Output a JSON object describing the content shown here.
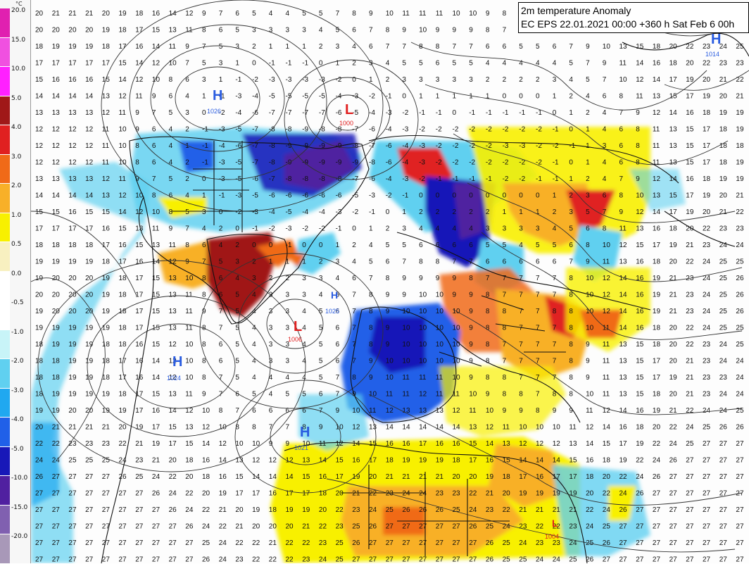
{
  "title": {
    "line1": "2m temperature Anomaly",
    "line2": "EC EPS 22.01.2021 00:00 +360 h Sat Feb 6 00h"
  },
  "legend": {
    "unit": "°C",
    "entries": [
      {
        "label": "20.0",
        "color": "#e020b0"
      },
      {
        "label": "15.0",
        "color": "#f050e0"
      },
      {
        "label": "10.0",
        "color": "#ff20ff"
      },
      {
        "label": "5.0",
        "color": "#a01818"
      },
      {
        "label": "4.0",
        "color": "#e02020"
      },
      {
        "label": "3.0",
        "color": "#f06a18"
      },
      {
        "label": "2.0",
        "color": "#f8b028"
      },
      {
        "label": "1.0",
        "color": "#f8f000"
      },
      {
        "label": "0.5",
        "color": "#f8f0c0"
      },
      {
        "label": "0.0",
        "color": "#ffffff"
      },
      {
        "label": "-0.5",
        "color": "#ffffff"
      },
      {
        "label": "-1.0",
        "color": "#c8f4f8"
      },
      {
        "label": "-2.0",
        "color": "#60d0f0"
      },
      {
        "label": "-3.0",
        "color": "#20a8f0"
      },
      {
        "label": "-4.0",
        "color": "#2060e8"
      },
      {
        "label": "-5.0",
        "color": "#1818b8"
      },
      {
        "label": "-10.0",
        "color": "#5020a0"
      },
      {
        "label": "-15.0",
        "color": "#8060b0"
      },
      {
        "label": "-20.0",
        "color": "#a898b8"
      }
    ]
  },
  "pressure_centers": [
    {
      "type": "H",
      "value": "1026",
      "color": "#2a5ce0"
    },
    {
      "type": "L",
      "value": "1000",
      "color": "#e02020"
    },
    {
      "type": "L",
      "value": "1006",
      "color": "#e02020"
    },
    {
      "type": "H",
      "value": "1024",
      "color": "#2a5ce0"
    },
    {
      "type": "H",
      "value": "1021",
      "color": "#2a5ce0"
    },
    {
      "type": "H",
      "value": "1014",
      "color": "#2a5ce0"
    },
    {
      "type": "H",
      "value": "1025",
      "color": "#2a5ce0"
    },
    {
      "type": "L",
      "value": "1004",
      "color": "#e02020"
    }
  ],
  "colors": {
    "contour": "#333333",
    "coast": "#111111",
    "text": "#111111"
  }
}
